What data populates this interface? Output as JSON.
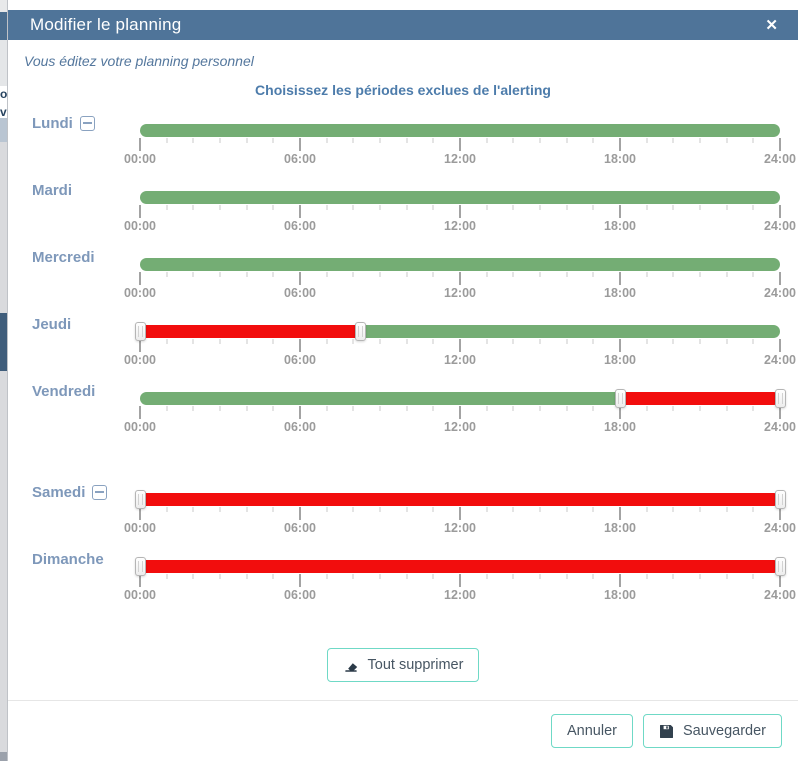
{
  "background": {
    "fragments": [
      "or",
      "v"
    ]
  },
  "modal": {
    "title": "Modifier le planning",
    "close_icon": "✕",
    "subtitle": "Vous éditez votre planning personnel",
    "heading": "Choisissez les périodes exclues de l'alerting"
  },
  "slider": {
    "hours": 24,
    "major_every": 6,
    "tick_labels": [
      "00:00",
      "06:00",
      "12:00",
      "18:00",
      "24:00"
    ],
    "colors": {
      "included": "#74ad74",
      "excluded": "#f20d0d"
    }
  },
  "days": [
    {
      "label": "Lundi",
      "removable": true,
      "gap_before": false,
      "segments": [
        {
          "type": "included",
          "start": "00:00",
          "end": "24:00",
          "start_pct": 0,
          "end_pct": 100
        }
      ],
      "handles": []
    },
    {
      "label": "Mardi",
      "removable": false,
      "gap_before": false,
      "segments": [
        {
          "type": "included",
          "start": "00:00",
          "end": "24:00",
          "start_pct": 0,
          "end_pct": 100
        }
      ],
      "handles": []
    },
    {
      "label": "Mercredi",
      "removable": false,
      "gap_before": false,
      "segments": [
        {
          "type": "included",
          "start": "00:00",
          "end": "24:00",
          "start_pct": 0,
          "end_pct": 100
        }
      ],
      "handles": []
    },
    {
      "label": "Jeudi",
      "removable": false,
      "gap_before": false,
      "segments": [
        {
          "type": "excluded",
          "start": "00:00",
          "end": "08:15",
          "start_pct": 0,
          "end_pct": 34.4
        },
        {
          "type": "included",
          "start": "08:15",
          "end": "24:00",
          "start_pct": 34.4,
          "end_pct": 100
        }
      ],
      "handles": [
        0,
        34.4
      ]
    },
    {
      "label": "Vendredi",
      "removable": false,
      "gap_before": false,
      "segments": [
        {
          "type": "included",
          "start": "00:00",
          "end": "18:00",
          "start_pct": 0,
          "end_pct": 75
        },
        {
          "type": "excluded",
          "start": "18:00",
          "end": "24:00",
          "start_pct": 75,
          "end_pct": 100
        }
      ],
      "handles": [
        75,
        100
      ]
    },
    {
      "label": "Samedi",
      "removable": true,
      "gap_before": true,
      "segments": [
        {
          "type": "excluded",
          "start": "00:00",
          "end": "24:00",
          "start_pct": 0,
          "end_pct": 100
        }
      ],
      "handles": [
        0,
        100
      ]
    },
    {
      "label": "Dimanche",
      "removable": false,
      "gap_before": false,
      "segments": [
        {
          "type": "excluded",
          "start": "00:00",
          "end": "24:00",
          "start_pct": 0,
          "end_pct": 100
        }
      ],
      "handles": [
        0,
        100
      ]
    }
  ],
  "actions": {
    "clear_all": "Tout supprimer",
    "cancel": "Annuler",
    "save": "Sauvegarder"
  }
}
